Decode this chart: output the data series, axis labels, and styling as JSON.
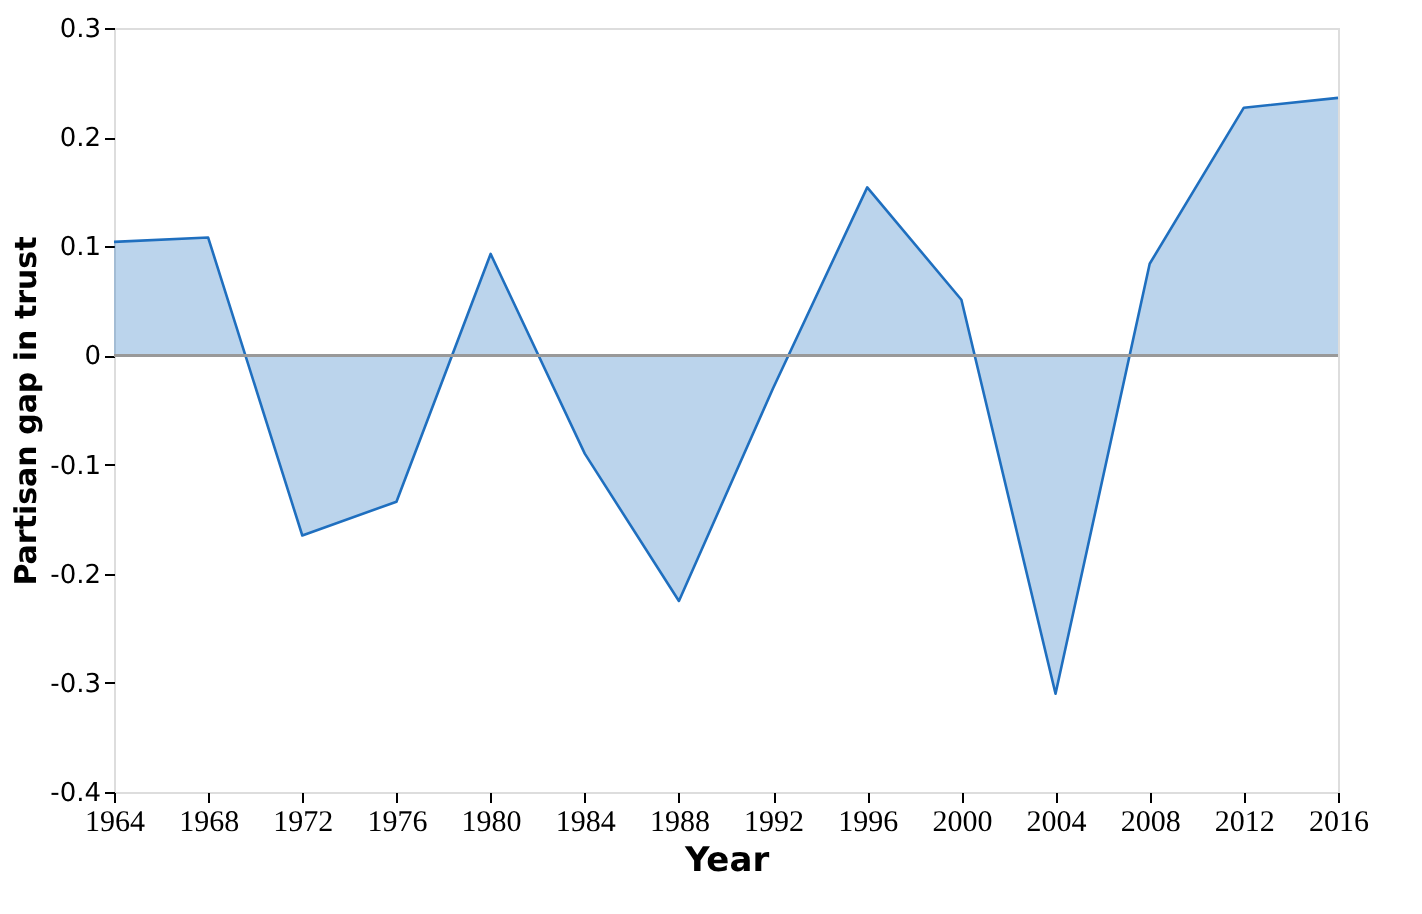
{
  "chart_data": {
    "type": "area",
    "xlabel": "Year",
    "ylabel": "Partisan gap in trust",
    "x": [
      1964,
      1968,
      1972,
      1976,
      1980,
      1984,
      1988,
      1992,
      1996,
      2000,
      2004,
      2008,
      2012,
      2016
    ],
    "series": [
      {
        "color": "#1f6fbf",
        "values": [
          0.104,
          0.108,
          -0.165,
          -0.134,
          0.093,
          -0.09,
          -0.225,
          -0.03,
          0.154,
          0.051,
          -0.31,
          0.084,
          0.227,
          0.236
        ]
      }
    ],
    "xlim": [
      1964,
      2016
    ],
    "xticks": [
      1964,
      1968,
      1972,
      1976,
      1980,
      1984,
      1988,
      1992,
      1996,
      2000,
      2004,
      2008,
      2012,
      2016
    ],
    "ylim": [
      -0.4,
      0.3
    ],
    "yticks": [
      -0.4,
      -0.3,
      -0.2,
      -0.1,
      0,
      0.1,
      0.2,
      0.3
    ],
    "ref_lines": [
      {
        "axis": "y",
        "value": 0,
        "color": "#999999"
      }
    ],
    "grid": false
  }
}
